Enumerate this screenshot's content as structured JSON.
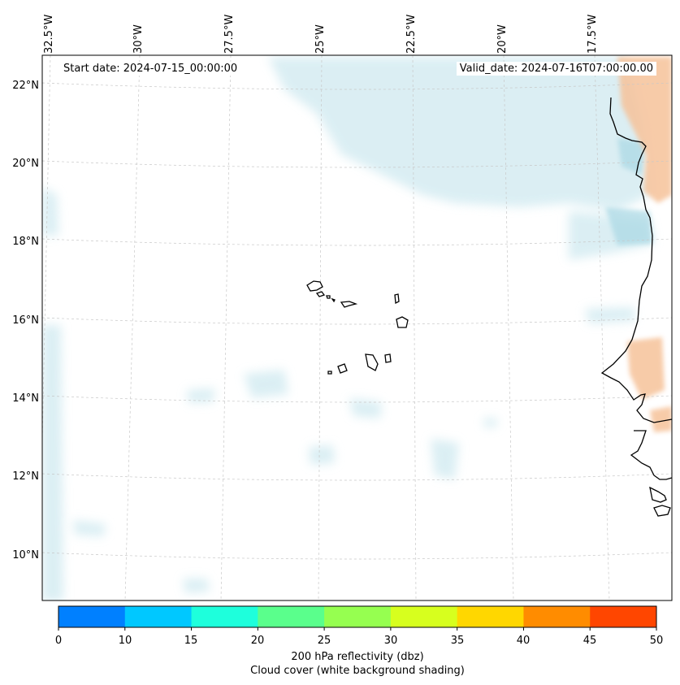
{
  "map": {
    "start_date": "Start date: 2024-07-15_00:00:00",
    "valid_date": "Valid_date: 2024-07-16T07:00:00.00",
    "lon_labels": [
      "32.5°W",
      "30°W",
      "27.5°W",
      "25°W",
      "22.5°W",
      "20°W",
      "17.5°W"
    ],
    "lat_labels": [
      "22°N",
      "20°N",
      "18°N",
      "16°N",
      "14°N",
      "12°N",
      "10°N"
    ],
    "features": [
      "Cabo Verde islands",
      "West African coastline",
      "cloud cover shading",
      "reflectivity shading"
    ]
  },
  "colorbar": {
    "ticks": [
      "0",
      "10",
      "15",
      "20",
      "25",
      "30",
      "35",
      "40",
      "45",
      "50"
    ],
    "colors": [
      "#0080ff",
      "#00c8ff",
      "#1effdc",
      "#5aff8c",
      "#96ff50",
      "#d7ff1e",
      "#ffd700",
      "#ff8c00",
      "#ff4600"
    ],
    "label": "200 hPa reflectivity (dbz)",
    "sublabel": "Cloud cover (white background shading)"
  }
}
